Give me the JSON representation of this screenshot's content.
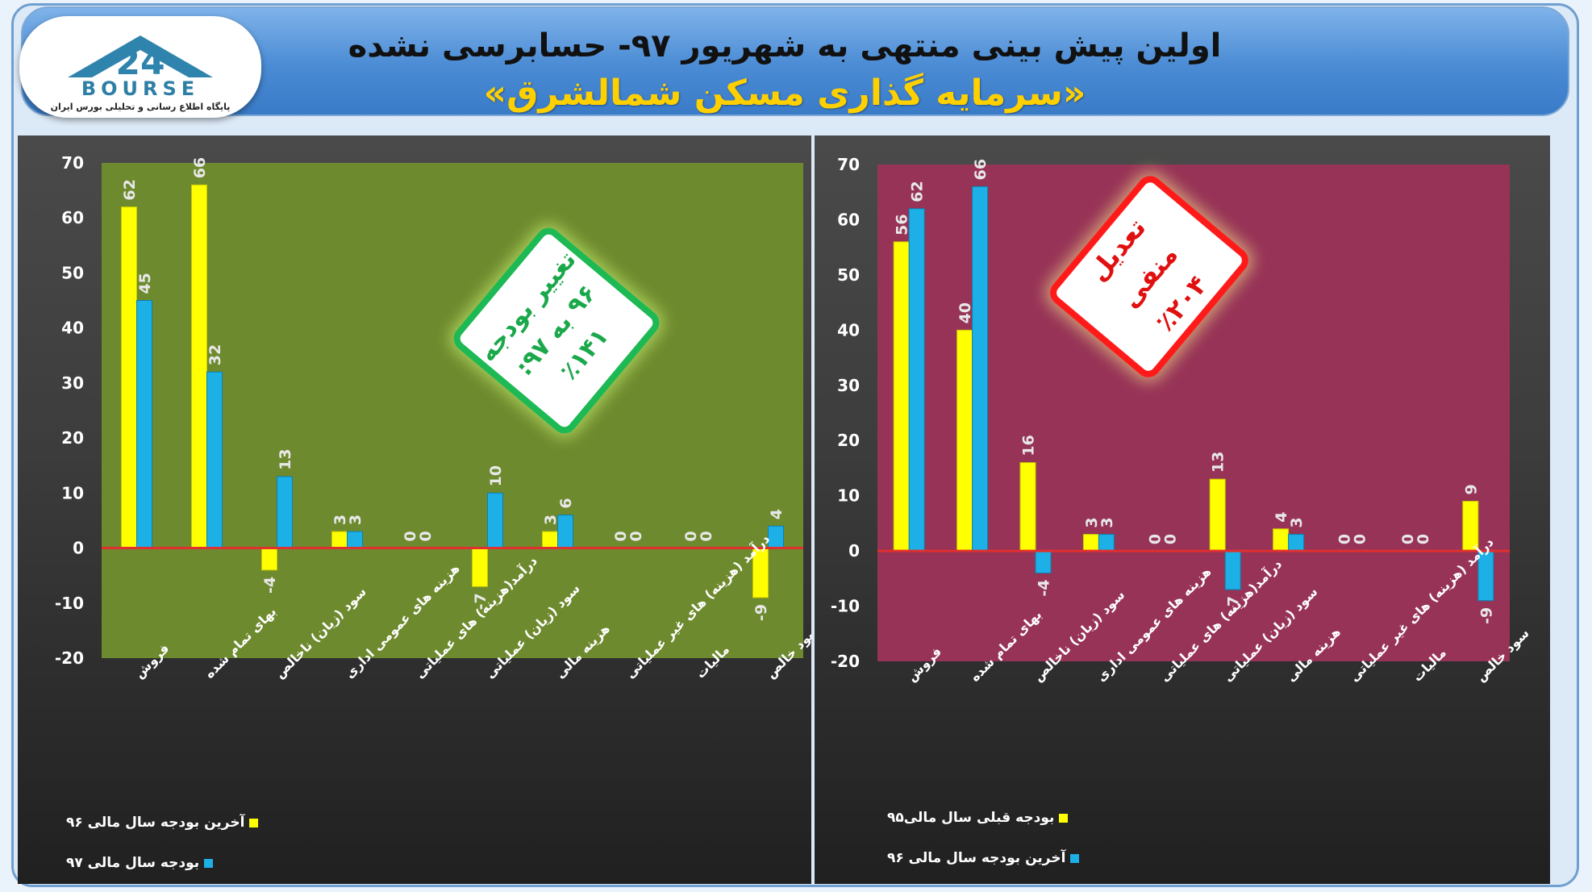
{
  "header": {
    "title_line1": "اولین پیش بینی منتهی به شهریور ۹۷- حسابرسی نشده",
    "title_line2": "«سرمایه گذاری مسکن شمالشرق»",
    "logo_text": "BOURSE",
    "logo_number": "24",
    "logo_subtitle": "پایگاه اطلاع رسانی و تحلیلی بورس ایران"
  },
  "colors": {
    "series_a": "#ffff00",
    "series_b": "#1cb0e6",
    "left_plot_bg": "#6e8a2e",
    "right_plot_bg": "#973357",
    "zero_line": "#e03030"
  },
  "callouts": {
    "left": {
      "lines": [
        "تغییر بودجه",
        "۹۶ به ۹۷:",
        "٪۱۴۱"
      ]
    },
    "right": {
      "lines": [
        "تعدیل منفی",
        "٪۲۰۴"
      ]
    }
  },
  "chart_data": [
    {
      "type": "bar",
      "categories": [
        "فروش",
        "بهای تمام شده",
        "سود (زیان) ناخالص",
        "هزینه های عمومی اداری",
        "درآمد(هزینه) های عملیاتی",
        "سود (زیان) عملیاتی",
        "هزینه مالی",
        "درآمد (هزینه) های غیر عملیاتی",
        "مالیات",
        "سود خالص"
      ],
      "series": [
        {
          "name": "آخرین بودجه سال مالی ۹۶",
          "values": [
            62,
            66,
            -4,
            3,
            0,
            -7,
            3,
            0,
            0,
            -9
          ]
        },
        {
          "name": "بودجه سال مالی ۹۷",
          "values": [
            45,
            32,
            13,
            3,
            0,
            10,
            6,
            0,
            0,
            4
          ]
        }
      ],
      "ylim": [
        -20,
        70
      ],
      "yticks": [
        -20,
        -10,
        0,
        10,
        20,
        30,
        40,
        50,
        60,
        70
      ],
      "legend_position": "bottom-left"
    },
    {
      "type": "bar",
      "categories": [
        "فروش",
        "بهای تمام شده",
        "سود (زیان) ناخالص",
        "هزینه های عمومی اداری",
        "درآمد(هزینه) های عملیاتی",
        "سود (زیان) عملیاتی",
        "هزینه مالی",
        "درآمد (هزینه) های غیر عملیاتی",
        "مالیات",
        "سود خالص"
      ],
      "series": [
        {
          "name": "بودجه قبلی سال مالی۹۵",
          "values": [
            56,
            40,
            16,
            3,
            0,
            13,
            4,
            0,
            0,
            9
          ]
        },
        {
          "name": "آخرین بودجه سال مالی ۹۶",
          "values": [
            62,
            66,
            -4,
            3,
            0,
            -7,
            3,
            0,
            0,
            -9
          ]
        }
      ],
      "ylim": [
        -20,
        70
      ],
      "yticks": [
        -20,
        -10,
        0,
        10,
        20,
        30,
        40,
        50,
        60,
        70
      ],
      "legend_position": "bottom-left"
    }
  ]
}
